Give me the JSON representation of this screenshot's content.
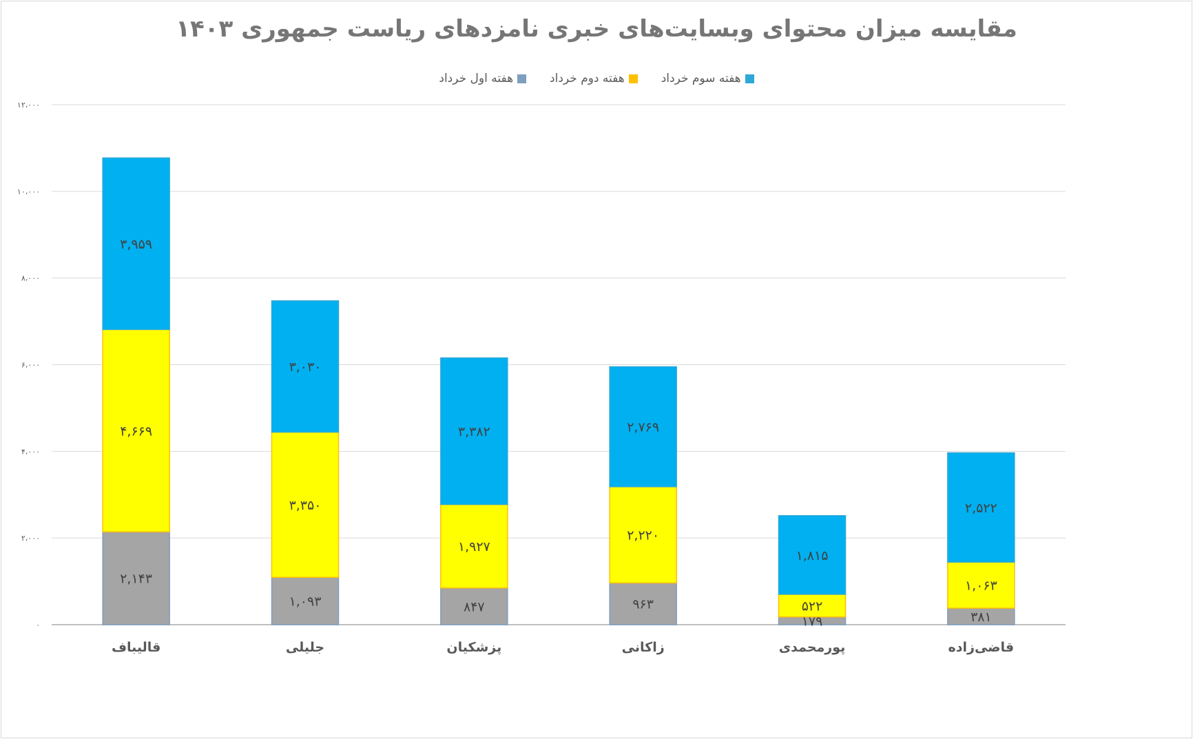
{
  "chart_data": {
    "type": "bar",
    "stacked": true,
    "title": "مقایسه میزان محتوای وبسایت‌های خبری نامزدهای ریاست  جمهوری ۱۴۰۳",
    "categories": [
      "قالیباف",
      "جلیلی",
      "پزشکیان",
      "زاکانی",
      "پورمحمدی",
      "قاضی‌زاده"
    ],
    "series": [
      {
        "name": "هفته اول خرداد",
        "color": "#a5a5a5",
        "values": [
          2143,
          1093,
          847,
          963,
          179,
          381
        ],
        "labels": [
          "۲,۱۴۳",
          "۱,۰۹۳",
          "۸۴۷",
          "۹۶۳",
          "۱۷۹",
          "۳۸۱"
        ]
      },
      {
        "name": "هفته دوم خرداد",
        "color": "#ffff00",
        "values": [
          4669,
          3350,
          1927,
          2220,
          522,
          1063
        ],
        "labels": [
          "۴,۶۶۹",
          "۳,۳۵۰",
          "۱,۹۲۷",
          "۲,۲۲۰",
          "۵۲۲",
          "۱,۰۶۳"
        ]
      },
      {
        "name": "هفته سوم خرداد",
        "color": "#00b0f0",
        "values": [
          3959,
          3030,
          3382,
          2769,
          1815,
          2522
        ],
        "labels": [
          "۳,۹۵۹",
          "۳,۰۳۰",
          "۳,۳۸۲",
          "۲,۷۶۹",
          "۱,۸۱۵",
          "۲,۵۲۲"
        ]
      }
    ],
    "legend_colors": [
      "#7f9fbf",
      "#ffc000",
      "#2ea8d8"
    ],
    "ylim": [
      0,
      12000
    ],
    "yticks": [
      0,
      2000,
      4000,
      6000,
      8000,
      10000,
      12000
    ],
    "ytick_labels": [
      "۰",
      "۲،۰۰۰",
      "۴،۰۰۰",
      "۶،۰۰۰",
      "۸،۰۰۰",
      "۱۰،۰۰۰",
      "۱۲،۰۰۰"
    ],
    "grid": true,
    "legend_position": "top"
  }
}
